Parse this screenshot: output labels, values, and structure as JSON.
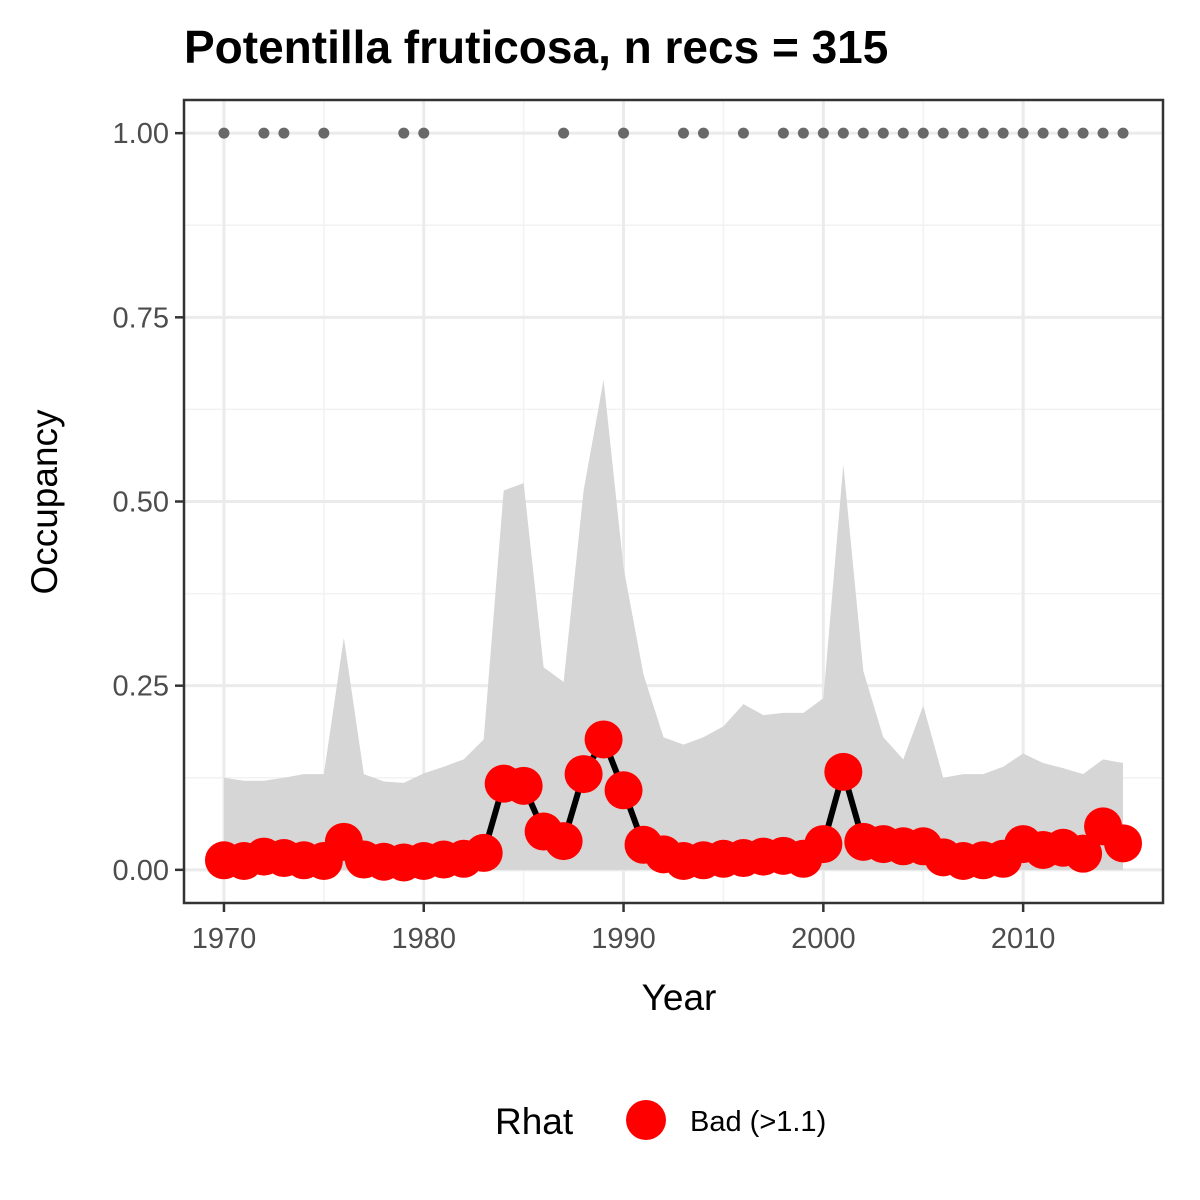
{
  "chart_data": {
    "type": "line",
    "title": "Potentilla fruticosa, n recs = 315",
    "xlabel": "Year",
    "ylabel": "Occupancy",
    "xlim": [
      1968,
      2017
    ],
    "ylim": [
      -0.045,
      1.045
    ],
    "x_ticks": [
      1970,
      1980,
      1990,
      2000,
      2010
    ],
    "x_tick_labels": [
      "1970",
      "1980",
      "1990",
      "2000",
      "2010"
    ],
    "y_ticks": [
      0,
      0.25,
      0.5,
      0.75,
      1.0
    ],
    "y_tick_labels": [
      "0.00",
      "0.25",
      "0.50",
      "0.75",
      "1.00"
    ],
    "grid": true,
    "colors": {
      "line": "#000000",
      "points": "#ff0000",
      "ribbon": "#d6d6d6",
      "records": "#696969"
    },
    "years": [
      1970,
      1971,
      1972,
      1973,
      1974,
      1975,
      1976,
      1977,
      1978,
      1979,
      1980,
      1981,
      1982,
      1983,
      1984,
      1985,
      1986,
      1987,
      1988,
      1989,
      1990,
      1991,
      1992,
      1993,
      1994,
      1995,
      1996,
      1997,
      1998,
      1999,
      2000,
      2001,
      2002,
      2003,
      2004,
      2005,
      2006,
      2007,
      2008,
      2009,
      2010,
      2011,
      2012,
      2013,
      2014,
      2015
    ],
    "series": [
      {
        "name": "Occupancy",
        "values": [
          0.013,
          0.012,
          0.018,
          0.016,
          0.013,
          0.012,
          0.038,
          0.014,
          0.011,
          0.01,
          0.012,
          0.014,
          0.015,
          0.023,
          0.117,
          0.114,
          0.052,
          0.039,
          0.13,
          0.177,
          0.108,
          0.034,
          0.021,
          0.012,
          0.013,
          0.015,
          0.016,
          0.018,
          0.019,
          0.015,
          0.035,
          0.133,
          0.038,
          0.035,
          0.032,
          0.032,
          0.017,
          0.012,
          0.013,
          0.015,
          0.035,
          0.027,
          0.03,
          0.022,
          0.059,
          0.036
        ]
      }
    ],
    "ribbon": {
      "lower": [
        0,
        0,
        0,
        0,
        0,
        0,
        0,
        0,
        0,
        0,
        0,
        0,
        0,
        0,
        0,
        0,
        0,
        0,
        0,
        0,
        0,
        0,
        0,
        0,
        0,
        0,
        0,
        0,
        0,
        0,
        0,
        0,
        0,
        0,
        0,
        0,
        0,
        0,
        0,
        0,
        0,
        0,
        0,
        0,
        0,
        0
      ],
      "upper": [
        0.125,
        0.121,
        0.121,
        0.125,
        0.13,
        0.13,
        0.315,
        0.13,
        0.12,
        0.118,
        0.131,
        0.14,
        0.15,
        0.177,
        0.515,
        0.525,
        0.275,
        0.255,
        0.515,
        0.665,
        0.41,
        0.265,
        0.18,
        0.17,
        0.18,
        0.195,
        0.225,
        0.21,
        0.213,
        0.213,
        0.233,
        0.55,
        0.27,
        0.18,
        0.15,
        0.223,
        0.125,
        0.13,
        0.13,
        0.14,
        0.158,
        0.145,
        0.138,
        0.13,
        0.15,
        0.145
      ]
    },
    "record_years": [
      1970,
      1972,
      1973,
      1975,
      1979,
      1980,
      1987,
      1990,
      1993,
      1994,
      1996,
      1998,
      1999,
      2000,
      2001,
      2002,
      2003,
      2004,
      2005,
      2006,
      2007,
      2008,
      2009,
      2010,
      2011,
      2012,
      2013,
      2014,
      2015
    ],
    "record_value": 1.0,
    "legend": {
      "title": "Rhat",
      "label": "Bad (>1.1)",
      "position": "bottom"
    }
  }
}
